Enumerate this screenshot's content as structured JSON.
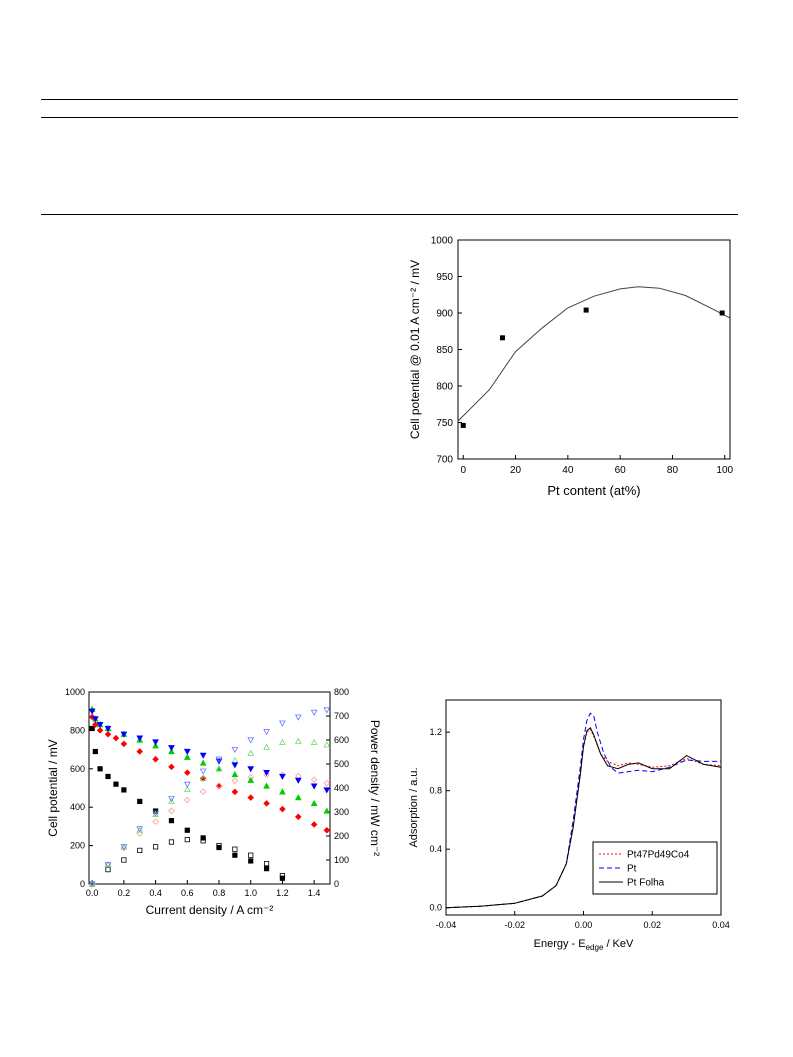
{
  "chart_data": [
    {
      "type": "scatter",
      "title": "",
      "xlabel": "Pt content (at%)",
      "ylabel": "Cell potential @ 0.01 A cm⁻² / mV",
      "xlim": [
        -2,
        102
      ],
      "ylim": [
        700,
        1000
      ],
      "xticks": [
        0,
        20,
        40,
        60,
        80,
        100
      ],
      "yticks": [
        700,
        750,
        800,
        850,
        900,
        950,
        1000
      ],
      "points": [
        {
          "x": 0,
          "y": 746
        },
        {
          "x": 15,
          "y": 866
        },
        {
          "x": 47,
          "y": 904
        },
        {
          "x": 99,
          "y": 900
        }
      ],
      "fit": {
        "type": "quadratic",
        "x": [
          -2,
          0,
          10,
          20,
          30,
          40,
          50,
          60,
          67,
          75,
          85,
          95,
          102
        ],
        "y": [
          752,
          759,
          795,
          847,
          879,
          907,
          923,
          933,
          936,
          934,
          924,
          906,
          893
        ]
      },
      "grid": false
    },
    {
      "type": "scatter",
      "title": "",
      "xlabel": "Current density / A cm⁻²",
      "ylabel": "Cell potential / mV",
      "y2label": "Power density / mW cm⁻²",
      "xlim": [
        -0.02,
        1.5
      ],
      "ylim": [
        0,
        1000
      ],
      "y2lim": [
        0,
        800
      ],
      "xticks": [
        0.0,
        0.2,
        0.4,
        0.6,
        0.8,
        1.0,
        1.2,
        1.4
      ],
      "xtick_labels": [
        "0.0",
        "0.2",
        "0.4",
        "0.6",
        "0.8",
        "1.0",
        "1.2",
        "1.4"
      ],
      "yticks": [
        0,
        200,
        400,
        600,
        800,
        1000
      ],
      "y2ticks": [
        0,
        100,
        200,
        300,
        400,
        500,
        600,
        700,
        800
      ],
      "series": [
        {
          "color": "#000000",
          "axis": "left",
          "marker": "square-filled",
          "x": [
            0.0,
            0.02,
            0.05,
            0.1,
            0.15,
            0.2,
            0.3,
            0.4,
            0.5,
            0.6,
            0.7,
            0.8,
            0.9,
            1.0,
            1.1,
            1.2
          ],
          "y": [
            810,
            690,
            600,
            560,
            520,
            490,
            430,
            380,
            330,
            280,
            240,
            190,
            150,
            120,
            80,
            30
          ]
        },
        {
          "color": "#000000",
          "axis": "right",
          "marker": "square-open",
          "x": [
            0.0,
            0.1,
            0.2,
            0.3,
            0.4,
            0.5,
            0.6,
            0.7,
            0.8,
            0.9,
            1.0,
            1.1,
            1.2
          ],
          "y": [
            0,
            60,
            100,
            140,
            155,
            175,
            185,
            180,
            160,
            145,
            120,
            85,
            35
          ]
        },
        {
          "color": "#ff0000",
          "axis": "left",
          "marker": "diamond-filled",
          "x": [
            0.0,
            0.02,
            0.05,
            0.1,
            0.15,
            0.2,
            0.3,
            0.4,
            0.5,
            0.6,
            0.7,
            0.8,
            0.9,
            1.0,
            1.1,
            1.2,
            1.3,
            1.4,
            1.48
          ],
          "y": [
            870,
            830,
            800,
            780,
            760,
            730,
            690,
            650,
            610,
            580,
            550,
            510,
            480,
            450,
            420,
            390,
            350,
            310,
            280
          ]
        },
        {
          "color": "#ff9999",
          "axis": "right",
          "marker": "diamond-open",
          "x": [
            0.0,
            0.1,
            0.2,
            0.3,
            0.4,
            0.5,
            0.6,
            0.7,
            0.8,
            0.9,
            1.0,
            1.1,
            1.2,
            1.3,
            1.4,
            1.48
          ],
          "y": [
            0,
            80,
            150,
            210,
            260,
            305,
            350,
            385,
            410,
            430,
            445,
            455,
            455,
            450,
            435,
            420
          ]
        },
        {
          "color": "#00cc00",
          "axis": "left",
          "marker": "triangle-up-filled",
          "x": [
            0.0,
            0.02,
            0.05,
            0.1,
            0.2,
            0.3,
            0.4,
            0.5,
            0.6,
            0.7,
            0.8,
            0.9,
            1.0,
            1.1,
            1.2,
            1.3,
            1.4,
            1.48
          ],
          "y": [
            910,
            860,
            830,
            810,
            780,
            750,
            720,
            690,
            660,
            630,
            600,
            570,
            540,
            510,
            480,
            450,
            420,
            380
          ]
        },
        {
          "color": "#66dd66",
          "axis": "right",
          "marker": "triangle-up-open",
          "x": [
            0.0,
            0.1,
            0.2,
            0.3,
            0.4,
            0.5,
            0.6,
            0.7,
            0.8,
            0.9,
            1.0,
            1.1,
            1.2,
            1.3,
            1.4,
            1.48
          ],
          "y": [
            0,
            80,
            155,
            225,
            290,
            345,
            395,
            440,
            480,
            515,
            545,
            570,
            590,
            595,
            590,
            580
          ]
        },
        {
          "color": "#0000ff",
          "axis": "left",
          "marker": "triangle-down-filled",
          "x": [
            0.0,
            0.02,
            0.05,
            0.1,
            0.2,
            0.3,
            0.4,
            0.5,
            0.6,
            0.7,
            0.8,
            0.9,
            1.0,
            1.1,
            1.2,
            1.3,
            1.4,
            1.48
          ],
          "y": [
            900,
            860,
            830,
            810,
            780,
            760,
            740,
            710,
            690,
            670,
            640,
            620,
            600,
            580,
            560,
            540,
            510,
            490
          ]
        },
        {
          "color": "#6677ff",
          "axis": "right",
          "marker": "triangle-down-open",
          "x": [
            0.0,
            0.1,
            0.2,
            0.3,
            0.4,
            0.5,
            0.6,
            0.7,
            0.8,
            0.9,
            1.0,
            1.1,
            1.2,
            1.3,
            1.4,
            1.48
          ],
          "y": [
            0,
            80,
            155,
            230,
            295,
            355,
            415,
            470,
            520,
            560,
            600,
            635,
            670,
            695,
            715,
            725
          ]
        }
      ],
      "grid": false
    },
    {
      "type": "line",
      "title": "",
      "xlabel": "Energy - E",
      "xlabel_sub": "edge",
      "xlabel_suffix": " / KeV",
      "ylabel": "Adsorption / a.u.",
      "xlim": [
        -0.04,
        0.04
      ],
      "ylim": [
        -0.05,
        1.42
      ],
      "xticks": [
        -0.04,
        -0.02,
        0.0,
        0.02,
        0.04
      ],
      "xtick_labels": [
        "-0.04",
        "-0.02",
        "0.00",
        "0.02",
        "0.04"
      ],
      "yticks": [
        0.0,
        0.4,
        0.8,
        1.2
      ],
      "ytick_labels": [
        "0.0",
        "0.4",
        "0.8",
        "1.2"
      ],
      "legend_position": "bottom-right",
      "series": [
        {
          "name": "Pt47Pd49Co4",
          "color": "#ff0000",
          "dash": "2,2",
          "x": [
            -0.04,
            -0.03,
            -0.02,
            -0.012,
            -0.008,
            -0.005,
            -0.003,
            -0.001,
            0.0,
            0.001,
            0.002,
            0.003,
            0.005,
            0.007,
            0.01,
            0.013,
            0.016,
            0.02,
            0.025,
            0.03,
            0.035,
            0.04
          ],
          "y": [
            0.0,
            0.01,
            0.03,
            0.08,
            0.15,
            0.3,
            0.55,
            0.9,
            1.1,
            1.2,
            1.22,
            1.17,
            1.05,
            1.0,
            0.97,
            0.99,
            0.98,
            0.96,
            0.97,
            1.02,
            0.98,
            0.97
          ]
        },
        {
          "name": "Pt",
          "color": "#0000ff",
          "dash": "5,3",
          "x": [
            -0.04,
            -0.03,
            -0.02,
            -0.012,
            -0.008,
            -0.005,
            -0.003,
            -0.001,
            0.0,
            0.001,
            0.002,
            0.003,
            0.004,
            0.006,
            0.008,
            0.01,
            0.013,
            0.016,
            0.02,
            0.025,
            0.03,
            0.035,
            0.04
          ],
          "y": [
            0.0,
            0.01,
            0.03,
            0.08,
            0.15,
            0.3,
            0.6,
            0.95,
            1.15,
            1.28,
            1.33,
            1.31,
            1.2,
            1.05,
            0.96,
            0.92,
            0.93,
            0.94,
            0.93,
            0.96,
            1.01,
            1.0,
            1.0
          ]
        },
        {
          "name": "Pt Folha",
          "color": "#000000",
          "dash": "",
          "x": [
            -0.04,
            -0.03,
            -0.02,
            -0.012,
            -0.008,
            -0.005,
            -0.003,
            -0.001,
            0.0,
            0.001,
            0.002,
            0.003,
            0.005,
            0.007,
            0.01,
            0.013,
            0.016,
            0.02,
            0.025,
            0.03,
            0.035,
            0.04
          ],
          "y": [
            0.0,
            0.01,
            0.03,
            0.08,
            0.15,
            0.3,
            0.55,
            0.9,
            1.1,
            1.21,
            1.23,
            1.18,
            1.05,
            0.97,
            0.95,
            0.98,
            0.99,
            0.95,
            0.95,
            1.04,
            0.98,
            0.96
          ]
        }
      ],
      "grid": false
    }
  ]
}
